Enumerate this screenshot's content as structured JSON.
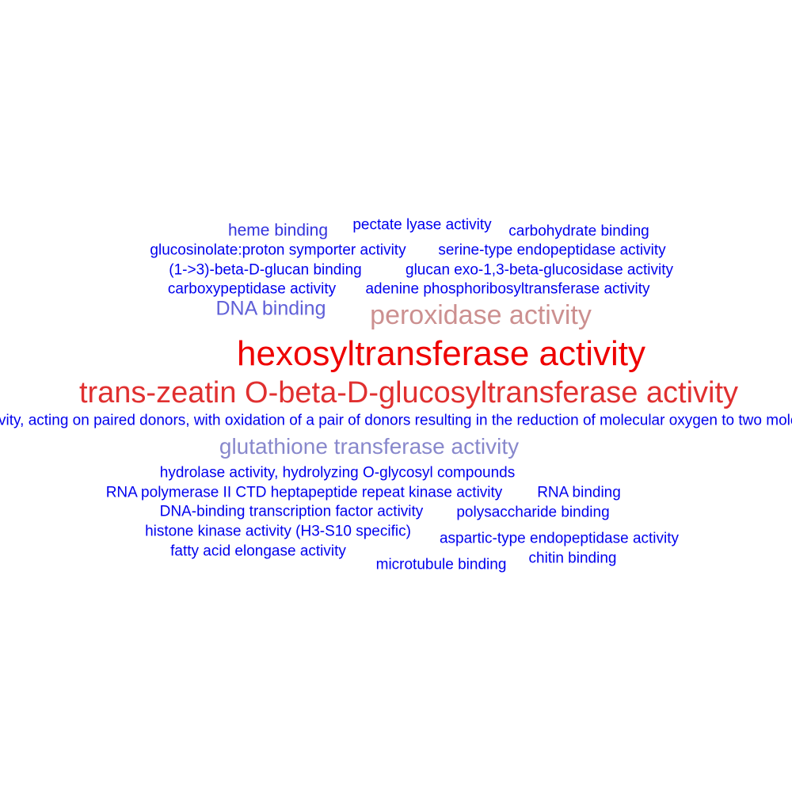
{
  "words": [
    {
      "text": "heme binding",
      "color": "#3333dd"
    },
    {
      "text": "pectate lyase activity",
      "color": "#0000ee"
    },
    {
      "text": "carbohydrate binding",
      "color": "#0000ee"
    },
    {
      "text": "glucosinolate:proton symporter activity",
      "color": "#0000ee"
    },
    {
      "text": "serine-type endopeptidase activity",
      "color": "#0000ee"
    },
    {
      "text": "(1->3)-beta-D-glucan binding",
      "color": "#0000ee"
    },
    {
      "text": "glucan exo-1,3-beta-glucosidase activity",
      "color": "#0000ee"
    },
    {
      "text": "carboxypeptidase activity",
      "color": "#0000ee"
    },
    {
      "text": "adenine phosphoribosyltransferase activity",
      "color": "#0000ee"
    },
    {
      "text": "DNA binding",
      "color": "#6060d8"
    },
    {
      "text": "peroxidase activity",
      "color": "#cc9090"
    },
    {
      "text": "hexosyltransferase activity",
      "color": "#ee0000"
    },
    {
      "text": "trans-zeatin O-beta-D-glucosyltransferase activity",
      "color": "#e03030"
    },
    {
      "text": "oxidoreductase activity, acting on paired donors, with oxidation of a pair of donors resulting in the reduction of molecular oxygen to two molecules of water",
      "color": "#0000ee"
    },
    {
      "text": "glutathione transferase activity",
      "color": "#8888cc"
    },
    {
      "text": "hydrolase activity, hydrolyzing O-glycosyl compounds",
      "color": "#0000ee"
    },
    {
      "text": "RNA polymerase II CTD heptapeptide repeat kinase activity",
      "color": "#0000ee"
    },
    {
      "text": "RNA binding",
      "color": "#0000ee"
    },
    {
      "text": "DNA-binding transcription factor activity",
      "color": "#0000ee"
    },
    {
      "text": "polysaccharide binding",
      "color": "#0000ee"
    },
    {
      "text": "histone kinase activity (H3-S10 specific)",
      "color": "#0000ee"
    },
    {
      "text": "aspartic-type endopeptidase activity",
      "color": "#0000ee"
    },
    {
      "text": "fatty acid elongase activity",
      "color": "#0000ee"
    },
    {
      "text": "microtubule binding",
      "color": "#0000ee"
    },
    {
      "text": "chitin binding",
      "color": "#0000ee"
    }
  ]
}
